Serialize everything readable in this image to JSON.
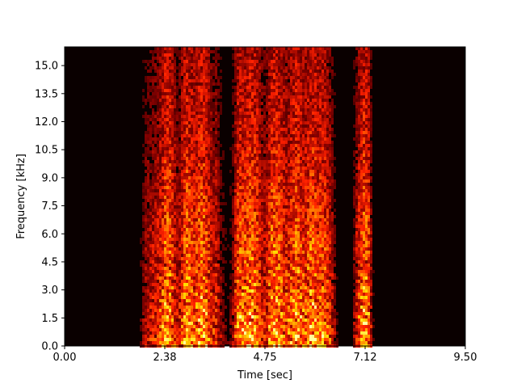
{
  "chart_data": {
    "type": "heatmap",
    "title": "",
    "xlabel": "Time [sec]",
    "ylabel": "Frequency [kHz]",
    "xlim": [
      0,
      9.5
    ],
    "ylim": [
      0,
      16
    ],
    "x_ticks": [
      {
        "value": 0.0,
        "label": "0.00"
      },
      {
        "value": 2.375,
        "label": "2.38"
      },
      {
        "value": 4.75,
        "label": "4.75"
      },
      {
        "value": 7.125,
        "label": "7.12"
      },
      {
        "value": 9.5,
        "label": "9.50"
      }
    ],
    "y_ticks": [
      {
        "value": 0.0,
        "label": "0.0"
      },
      {
        "value": 1.5,
        "label": "1.5"
      },
      {
        "value": 3.0,
        "label": "3.0"
      },
      {
        "value": 4.5,
        "label": "4.5"
      },
      {
        "value": 6.0,
        "label": "6.0"
      },
      {
        "value": 7.5,
        "label": "7.5"
      },
      {
        "value": 9.0,
        "label": "9.0"
      },
      {
        "value": 10.5,
        "label": "10.5"
      },
      {
        "value": 12.0,
        "label": "12.0"
      },
      {
        "value": 13.5,
        "label": "13.5"
      },
      {
        "value": 15.0,
        "label": "15.0"
      }
    ],
    "colormap": "hot",
    "colors": [
      "#0a0000",
      "#800000",
      "#ff2000",
      "#ff8000",
      "#ffe000",
      "#ffffa0"
    ],
    "background_color": "#0a0000",
    "time_bins": [
      0.0,
      0.25,
      0.5,
      0.75,
      1.0,
      1.25,
      1.5,
      1.75,
      1.9,
      2.0,
      2.1,
      2.2,
      2.3,
      2.4,
      2.5,
      2.6,
      2.7,
      2.8,
      2.9,
      3.0,
      3.1,
      3.2,
      3.3,
      3.4,
      3.5,
      3.6,
      3.7,
      3.8,
      3.9,
      4.0,
      4.1,
      4.2,
      4.3,
      4.4,
      4.5,
      4.6,
      4.7,
      4.8,
      4.9,
      5.0,
      5.1,
      5.2,
      5.3,
      5.4,
      5.5,
      5.6,
      5.7,
      5.8,
      5.9,
      6.0,
      6.1,
      6.2,
      6.3,
      6.4,
      6.5,
      6.6,
      6.7,
      6.8,
      6.9,
      7.0,
      7.1,
      7.2,
      7.3,
      7.4,
      7.5,
      7.75,
      8.0,
      8.5,
      9.0,
      9.5
    ],
    "energy": [
      0.0,
      0.0,
      0.0,
      0.0,
      0.0,
      0.0,
      0.0,
      0.05,
      0.35,
      0.45,
      0.5,
      0.55,
      0.7,
      0.95,
      0.9,
      0.6,
      0.4,
      0.75,
      0.95,
      0.8,
      0.7,
      0.9,
      0.95,
      0.75,
      0.5,
      0.55,
      0.3,
      0.2,
      0.15,
      0.35,
      0.8,
      0.9,
      0.85,
      0.95,
      0.9,
      0.75,
      0.5,
      0.55,
      0.9,
      0.95,
      0.85,
      0.7,
      0.65,
      0.8,
      0.95,
      0.85,
      0.7,
      0.9,
      0.95,
      0.8,
      0.85,
      0.75,
      0.55,
      0.3,
      0.05,
      0.0,
      0.0,
      0.05,
      0.45,
      0.7,
      0.95,
      0.85,
      0.2,
      0.05,
      0.02,
      0.0,
      0.0,
      0.0,
      0.0,
      0.0
    ]
  }
}
